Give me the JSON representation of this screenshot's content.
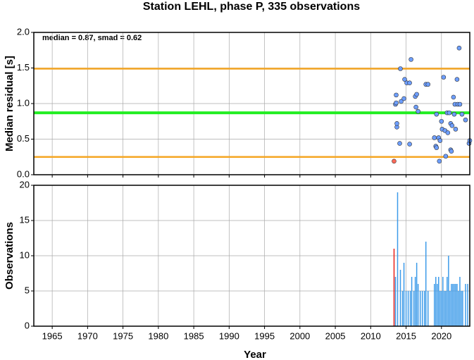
{
  "chart_data": [
    {
      "type": "scatter",
      "title": "Station LEHL, phase P, 335 observations",
      "y_label": "Median residual [s]",
      "annotation": "median = 0.87, smad = 0.62",
      "xlim": [
        1962.4,
        2024
      ],
      "xticks": [
        1965,
        1970,
        1975,
        1980,
        1985,
        1990,
        1995,
        2000,
        2005,
        2010,
        2015,
        2020
      ],
      "ylim": [
        0,
        2
      ],
      "yticks": [
        {
          "value": 0,
          "label": "0.0"
        },
        0.5,
        {
          "value": 1,
          "label": "1.0"
        },
        1.5,
        {
          "value": 2,
          "label": "2.0"
        }
      ],
      "grid": true,
      "hlines": [
        {
          "value": 0.87,
          "color": "#22ee22"
        },
        {
          "value": 0.25,
          "color": "#f5a623"
        },
        {
          "value": 1.49,
          "color": "#f5a623"
        }
      ],
      "series": [
        {
          "color": "#ff6a5a",
          "x": [
            2013.3
          ],
          "values": [
            0.19
          ]
        },
        {
          "color": "#6d9eff",
          "x": [
            2013.5,
            2013.6,
            2013.6,
            2013.7,
            2013.7,
            2014.1,
            2014.2,
            2014.3,
            2014.7,
            2014.8,
            2015.1,
            2015.5,
            2015.5,
            2015.7,
            2016.3,
            2016.4,
            2016.5,
            2016.7,
            2017.8,
            2018.1,
            2019.0,
            2019.2,
            2019.3,
            2019.3,
            2019.6,
            2019.7,
            2019.8,
            2020.0,
            2020.1,
            2020.3,
            2020.6,
            2020.5,
            2020.8,
            2020.9,
            2021.1,
            2021.3,
            2021.3,
            2021.4,
            2021.5,
            2021.7,
            2021.8,
            2021.9,
            2022.0,
            2022.2,
            2022.3,
            2022.5,
            2022.6,
            2022.9,
            2023.4,
            2023.9,
            2024.0
          ],
          "values": [
            0.99,
            1.12,
            1.01,
            0.67,
            0.72,
            0.44,
            1.49,
            1.03,
            1.07,
            1.34,
            1.29,
            1.29,
            0.43,
            1.62,
            1.1,
            0.95,
            1.13,
            0.89,
            1.27,
            1.27,
            0.52,
            0.4,
            0.85,
            0.38,
            0.52,
            0.19,
            0.48,
            0.75,
            0.64,
            1.37,
            0.26,
            0.62,
            0.87,
            0.59,
            0.87,
            0.35,
            0.72,
            0.33,
            0.69,
            1.09,
            0.85,
            0.99,
            0.64,
            1.34,
            0.99,
            1.78,
            0.99,
            0.85,
            0.77,
            0.44,
            0.48
          ]
        }
      ]
    },
    {
      "type": "bar",
      "x_label": "Year",
      "y_label": "Observations",
      "xlim": [
        1962.4,
        2024
      ],
      "xticks": [
        1965,
        1970,
        1975,
        1980,
        1985,
        1990,
        1995,
        2000,
        2005,
        2010,
        2015,
        2020
      ],
      "ylim": [
        0,
        20
      ],
      "yticks": [
        0,
        5,
        10,
        15,
        20
      ],
      "grid": true,
      "series": [
        {
          "color": "#e8201a",
          "x": [
            2013.3
          ],
          "values": [
            11
          ]
        },
        {
          "color": "#3d9be9",
          "x": [
            2013.5,
            2013.8,
            2014.2,
            2014.5,
            2014.7,
            2015.0,
            2015.3,
            2015.6,
            2015.8,
            2016.1,
            2016.3,
            2016.5,
            2016.7,
            2017.0,
            2017.3,
            2017.6,
            2017.8,
            2018.1,
            2019.0,
            2019.2,
            2019.4,
            2019.6,
            2019.8,
            2020.0,
            2020.2,
            2020.4,
            2020.6,
            2020.8,
            2021.0,
            2021.2,
            2021.4,
            2021.6,
            2021.8,
            2022.0,
            2022.2,
            2022.4,
            2022.6,
            2022.8,
            2023.0,
            2023.4,
            2023.7
          ],
          "values": [
            7,
            19,
            8,
            5,
            9,
            5,
            5,
            5,
            7,
            5,
            7,
            9,
            6,
            5,
            5,
            5,
            12,
            5,
            6,
            7,
            6,
            7,
            5,
            5,
            7,
            5,
            5,
            7,
            10,
            5,
            6,
            6,
            6,
            6,
            6,
            5,
            7,
            5,
            5,
            6,
            6
          ]
        }
      ]
    }
  ]
}
